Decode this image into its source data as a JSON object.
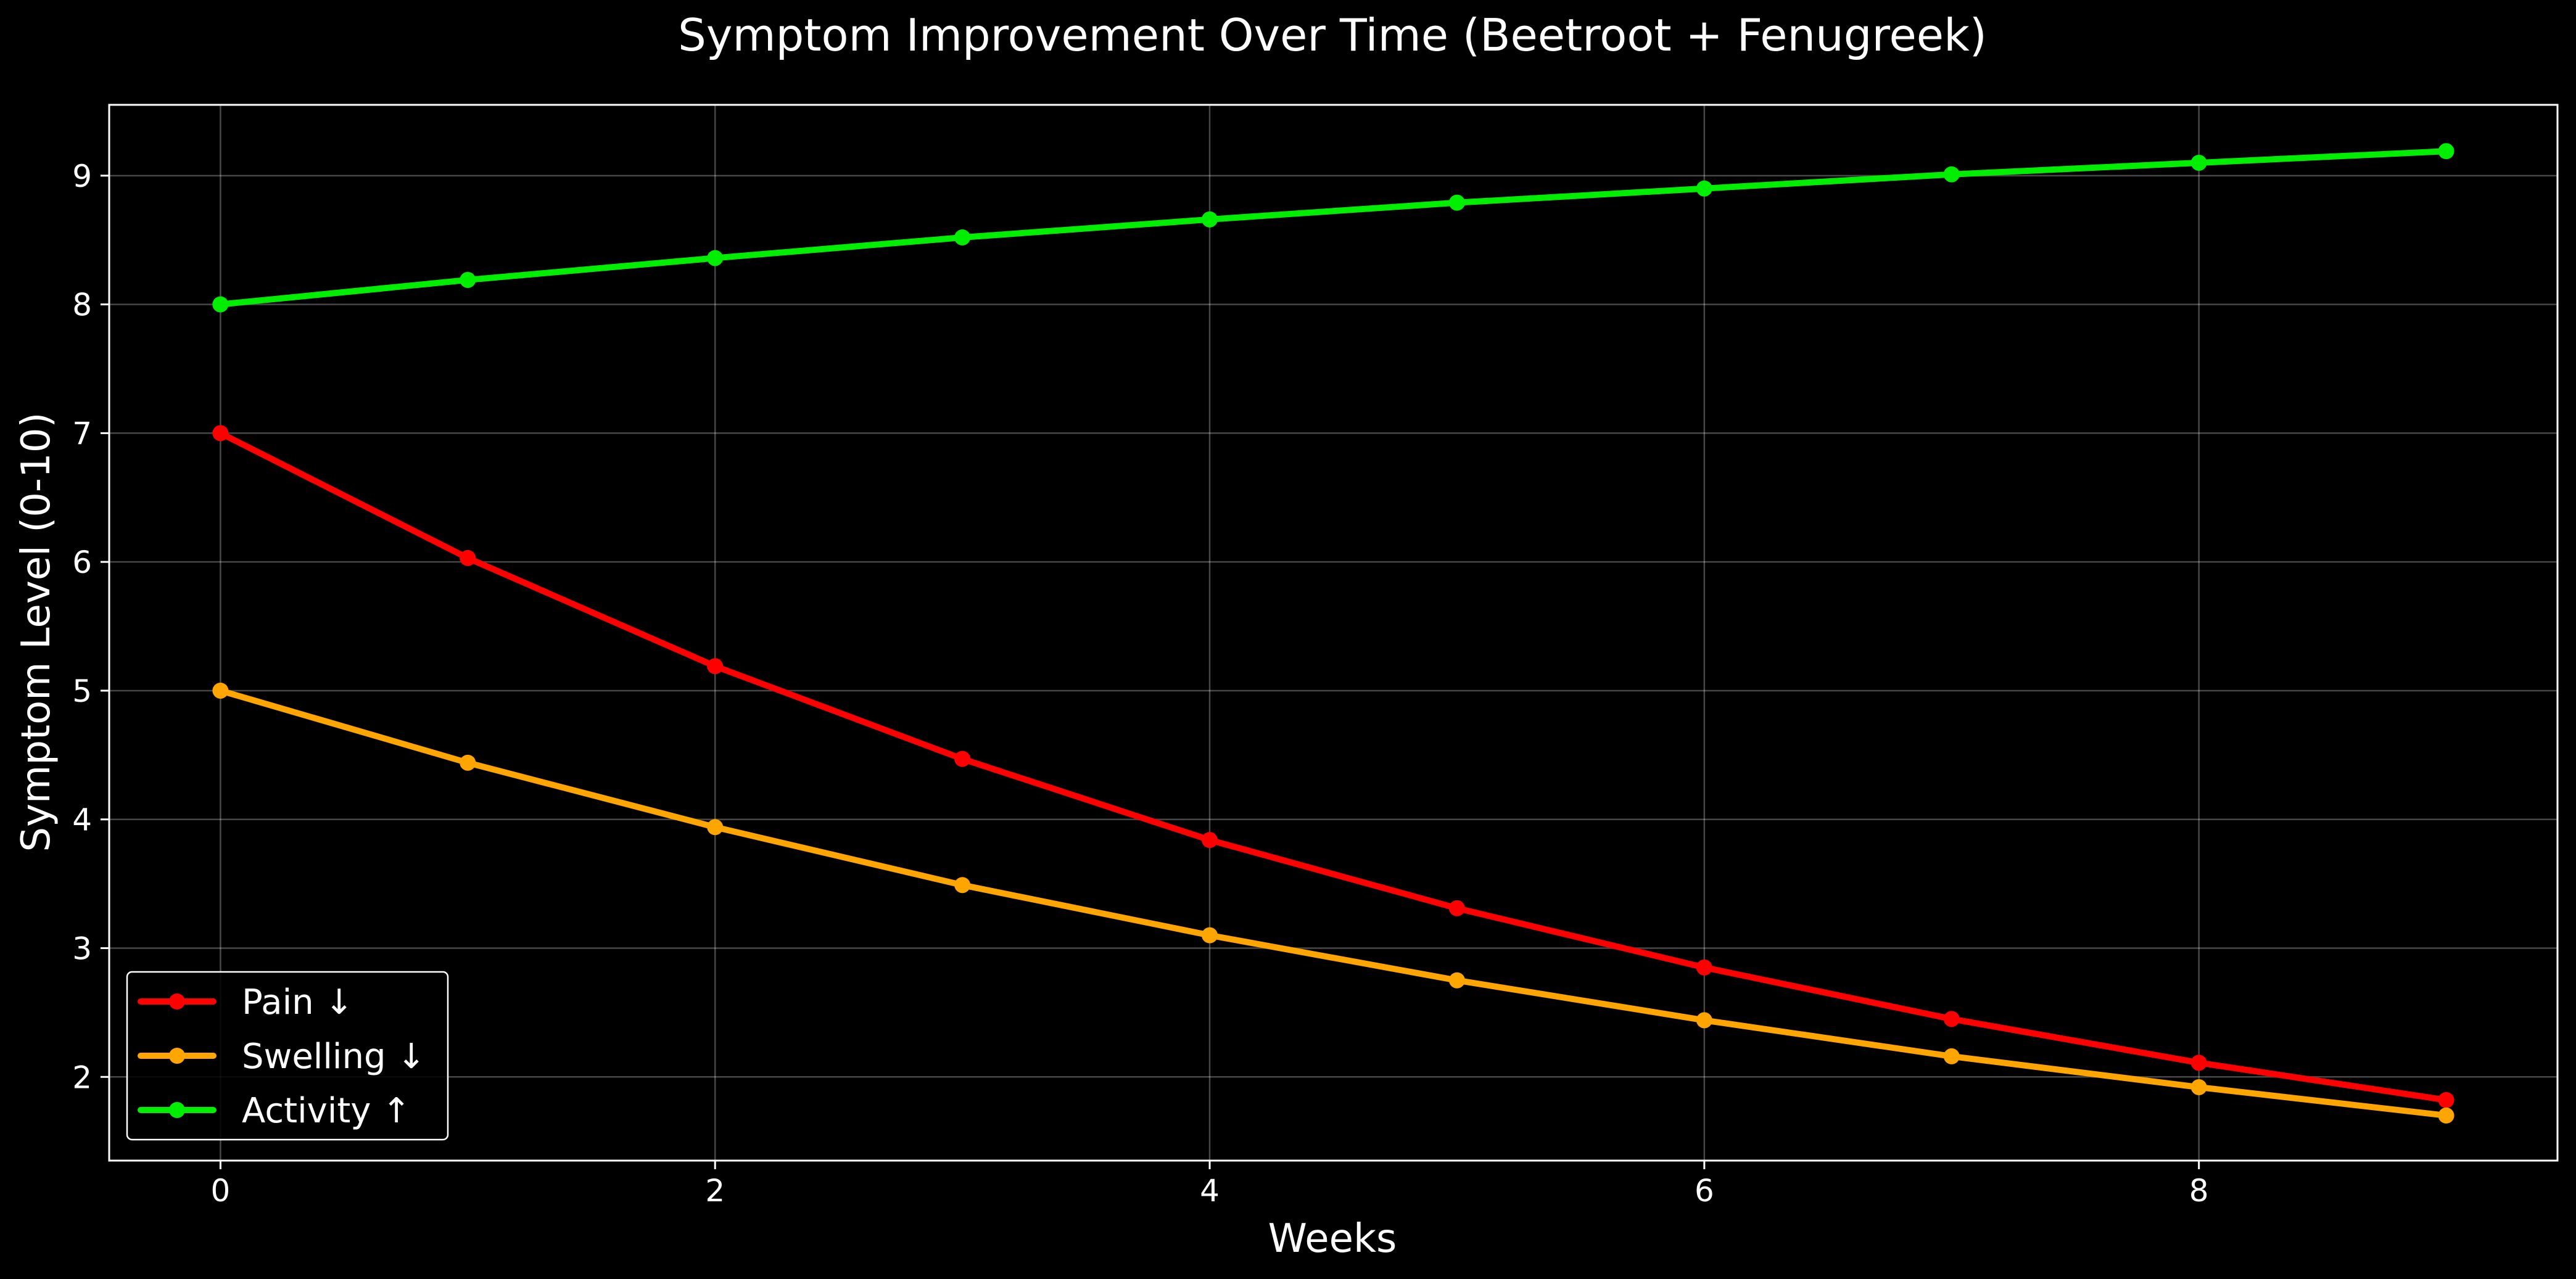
{
  "chart_data": {
    "type": "line",
    "title": "Symptom Improvement Over Time (Beetroot + Fenugreek)",
    "xlabel": "Weeks",
    "ylabel": "Symptom Level (0-10)",
    "x": [
      0,
      1,
      2,
      3,
      4,
      5,
      6,
      7,
      8,
      9
    ],
    "xlim": [
      -0.45,
      9.45
    ],
    "ylim": [
      1.35,
      9.55
    ],
    "x_ticks": [
      0,
      2,
      4,
      6,
      8
    ],
    "y_ticks": [
      2,
      3,
      4,
      5,
      6,
      7,
      8,
      9
    ],
    "grid": true,
    "background": "#000000",
    "legend_position": "lower-left",
    "series": [
      {
        "name": "Pain ↓",
        "color": "#ff0000",
        "values": [
          7.0,
          6.03,
          5.19,
          4.47,
          3.84,
          3.31,
          2.85,
          2.45,
          2.11,
          1.82
        ]
      },
      {
        "name": "Swelling ↓",
        "color": "#ffa500",
        "values": [
          5.0,
          4.44,
          3.94,
          3.49,
          3.1,
          2.75,
          2.44,
          2.16,
          1.92,
          1.7
        ]
      },
      {
        "name": "Activity ↑",
        "color": "#00ee00",
        "values": [
          8.0,
          8.19,
          8.36,
          8.52,
          8.66,
          8.79,
          8.9,
          9.01,
          9.1,
          9.19
        ]
      }
    ]
  }
}
